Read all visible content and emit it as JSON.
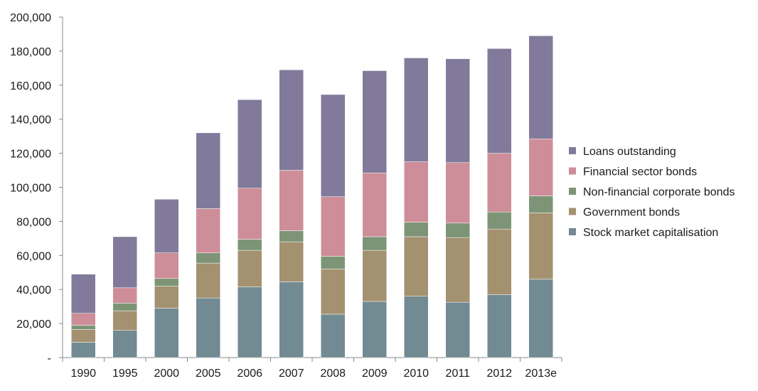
{
  "chart_data": {
    "type": "bar",
    "stacked": true,
    "title": "",
    "xlabel": "",
    "ylabel": "",
    "ylim": [
      0,
      200000
    ],
    "grid": false,
    "legend_position": "right",
    "y_ticks": [
      "-",
      "20,000",
      "40,000",
      "60,000",
      "80,000",
      "100,000",
      "120,000",
      "140,000",
      "160,000",
      "180,000",
      "200,000"
    ],
    "categories": [
      "1990",
      "1995",
      "2000",
      "2005",
      "2006",
      "2007",
      "2008",
      "2009",
      "2010",
      "2011",
      "2012",
      "2013e"
    ],
    "series": [
      {
        "name": "Stock market capitalisation",
        "color": "#728a92",
        "values": [
          9000,
          16000,
          29000,
          35000,
          41500,
          44500,
          25500,
          33000,
          36000,
          32500,
          37000,
          46000
        ]
      },
      {
        "name": "Government bonds",
        "color": "#a39170",
        "values": [
          7500,
          11500,
          13000,
          20500,
          21500,
          23500,
          26500,
          30000,
          35000,
          38000,
          38500,
          39000
        ]
      },
      {
        "name": "Non-financial corporate bonds",
        "color": "#7d9576",
        "values": [
          2500,
          4500,
          4500,
          6000,
          6500,
          6500,
          7500,
          8000,
          8500,
          8500,
          10000,
          10000
        ]
      },
      {
        "name": "Financial sector bonds",
        "color": "#cd8e99",
        "values": [
          7000,
          9000,
          15000,
          26000,
          30000,
          35500,
          35000,
          37500,
          35500,
          35500,
          34500,
          33500
        ]
      },
      {
        "name": "Loans outstanding",
        "color": "#827a9b",
        "values": [
          23000,
          30000,
          31500,
          44500,
          52000,
          59000,
          60000,
          60000,
          61000,
          61000,
          61500,
          60500
        ]
      }
    ]
  }
}
